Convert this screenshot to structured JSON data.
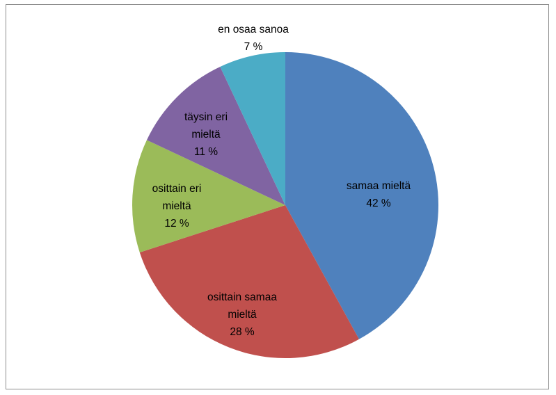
{
  "chart_data": {
    "type": "pie",
    "title": "",
    "start_angle_deg": 0,
    "direction": "clockwise",
    "slices": [
      {
        "label": "samaa mieltä",
        "value_label": "42 %",
        "value": 42,
        "color": "#4F81BD"
      },
      {
        "label": "osittain samaa mieltä",
        "value_label": "28 %",
        "value": 28,
        "color": "#C0504D"
      },
      {
        "label": "osittain eri mieltä",
        "value_label": "12 %",
        "value": 12,
        "color": "#9BBB59"
      },
      {
        "label": "täysin eri mieltä",
        "value_label": "11 %",
        "value": 11,
        "color": "#8064A2"
      },
      {
        "label": "en osaa sanoa",
        "value_label": "7 %",
        "value": 7,
        "color": "#4BACC6"
      }
    ],
    "legend": "none",
    "data_labels": "inside"
  }
}
